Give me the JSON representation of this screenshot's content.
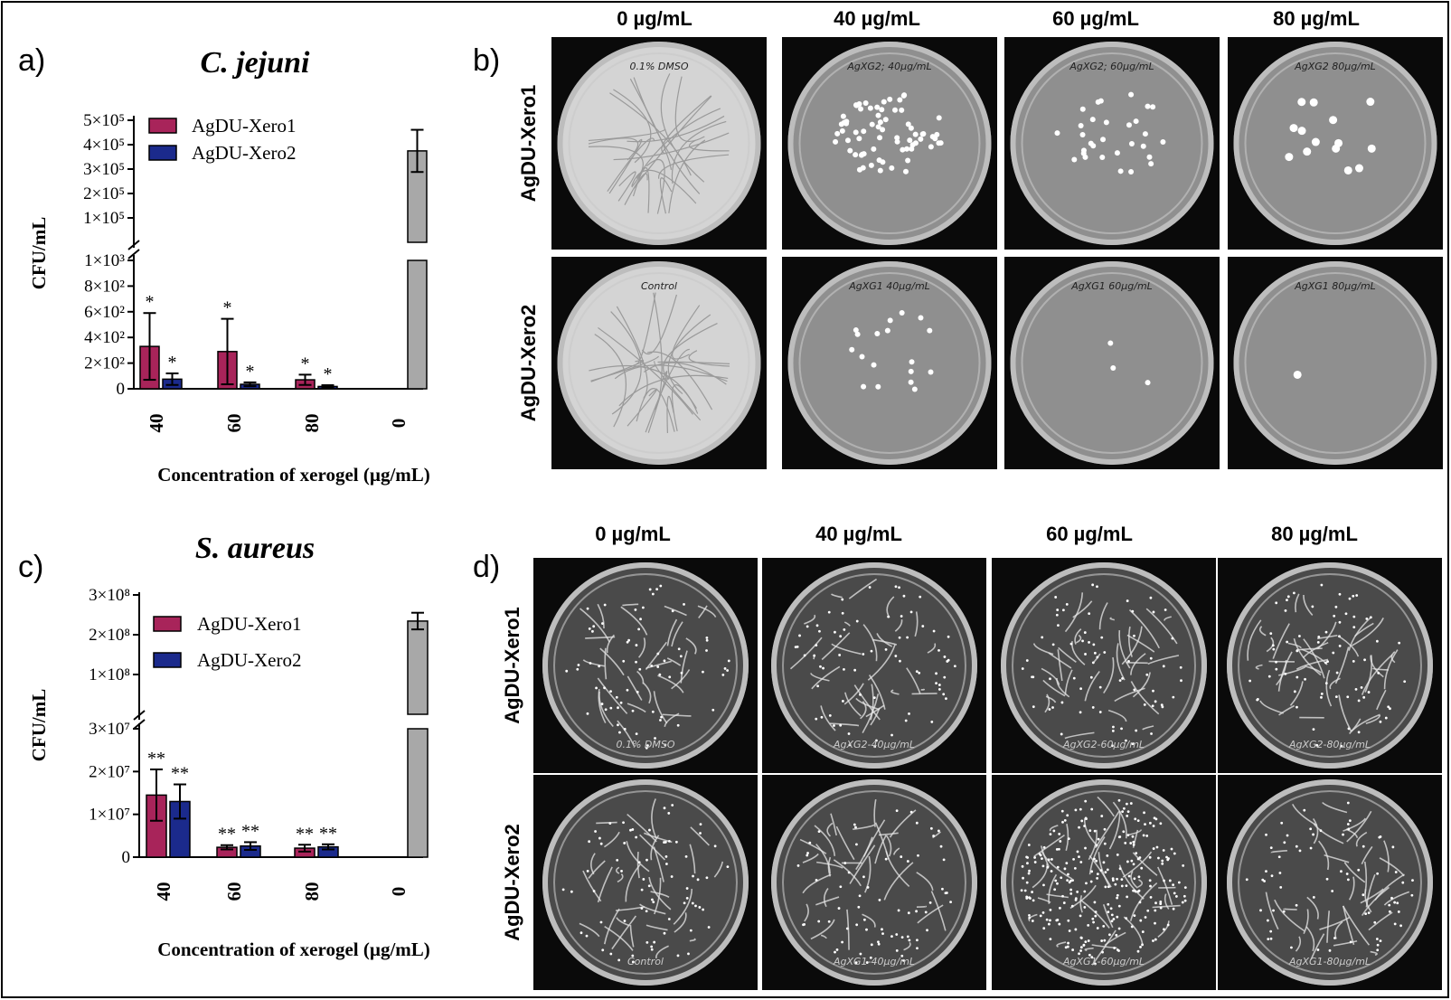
{
  "panels": {
    "a_label": "a)",
    "b_label": "b)",
    "c_label": "c)",
    "d_label": "d)"
  },
  "colors": {
    "xero1": "#a8245a",
    "xero2": "#1b2a8c",
    "control": "#a8a8a8"
  },
  "chart_data": [
    {
      "type": "bar",
      "title": "C. jejuni",
      "xlabel": "Concentration of xerogel (µg/mL)",
      "ylabel": "CFU/mL",
      "y_axis": "broken",
      "lower_ticks": [
        "0",
        "2×10²",
        "4×10²",
        "6×10²",
        "8×10²",
        "1×10³"
      ],
      "upper_ticks": [
        "1×10⁵",
        "2×10⁵",
        "3×10⁵",
        "4×10⁵",
        "5×10⁵"
      ],
      "lower_range": [
        0,
        1000
      ],
      "upper_range": [
        50000,
        500000
      ],
      "categories": [
        "40",
        "60",
        "80",
        "0"
      ],
      "series": [
        {
          "name": "AgDU-Xero1",
          "values": [
            330,
            290,
            70,
            null
          ],
          "errors": [
            260,
            255,
            40,
            null
          ],
          "sig": [
            "*",
            "*",
            "*",
            ""
          ]
        },
        {
          "name": "AgDU-Xero2",
          "values": [
            75,
            35,
            18,
            null
          ],
          "errors": [
            45,
            15,
            10,
            null
          ],
          "sig": [
            "*",
            "*",
            "*",
            ""
          ]
        },
        {
          "name": "",
          "values": [
            null,
            null,
            null,
            375000
          ],
          "errors": [
            null,
            null,
            null,
            75000
          ],
          "sig": [
            "",
            "",
            "",
            ""
          ]
        }
      ]
    },
    {
      "type": "bar",
      "title": "S. aureus",
      "xlabel": "Concentration of xerogel (µg/mL)",
      "ylabel": "CFU/mL",
      "y_axis": "broken",
      "lower_ticks": [
        "0",
        "1×10⁷",
        "2×10⁷",
        "3×10⁷"
      ],
      "upper_ticks": [
        "1×10⁸",
        "2×10⁸",
        "3×10⁸"
      ],
      "lower_range": [
        0,
        30000000
      ],
      "upper_range": [
        80000000,
        300000000
      ],
      "categories": [
        "40",
        "60",
        "80",
        "0"
      ],
      "series": [
        {
          "name": "AgDU-Xero1",
          "values": [
            14500000,
            2300000,
            2100000,
            null
          ],
          "errors": [
            6000000,
            500000,
            800000,
            null
          ],
          "sig": [
            "**",
            "**",
            "**",
            ""
          ]
        },
        {
          "name": "AgDU-Xero2",
          "values": [
            13000000,
            2600000,
            2400000,
            null
          ],
          "errors": [
            4000000,
            900000,
            600000,
            null
          ],
          "sig": [
            "**",
            "**",
            "**",
            ""
          ]
        },
        {
          "name": "",
          "values": [
            null,
            null,
            null,
            248000000
          ],
          "errors": [
            null,
            null,
            null,
            15000000
          ],
          "sig": [
            "",
            "",
            "",
            ""
          ]
        }
      ]
    }
  ],
  "plates_b": {
    "columns": [
      "0 µg/mL",
      "40 µg/mL",
      "60 µg/mL",
      "80 µg/mL"
    ],
    "rows": [
      "AgDU-Xero1",
      "AgDU-Xero2"
    ],
    "notes": [
      [
        "0.1% DMSO",
        "AgXG2; 40µg/mL",
        "AgXG2; 60µg/mL",
        "AgXG2 80µg/mL"
      ],
      [
        "Control",
        "AgXG1 40µg/mL",
        "AgXG1 60µg/mL",
        "AgXG1 80µg/mL"
      ]
    ]
  },
  "plates_d": {
    "columns": [
      "0 µg/mL",
      "40 µg/mL",
      "60 µg/mL",
      "80 µg/mL"
    ],
    "rows": [
      "AgDU-Xero1",
      "AgDU-Xero2"
    ],
    "notes": [
      [
        "0.1% DMSO",
        "AgXG2-40µg/mL",
        "AgXG2-60µg/mL",
        "AgXG2-80µg/mL"
      ],
      [
        "Control",
        "AgXG1-40µg/mL",
        "AgXG1-60µg/mL",
        "AgXG1-80µg/mL"
      ]
    ]
  }
}
